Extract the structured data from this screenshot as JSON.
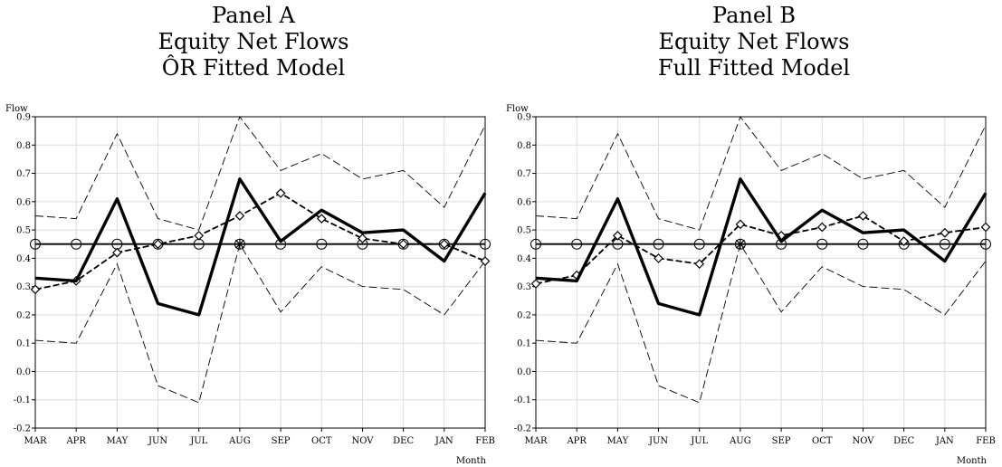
{
  "chart_data": [
    {
      "type": "line",
      "title_lines": [
        "Panel A",
        "Equity Net Flows",
        "ÔR Fitted Model"
      ],
      "xlabel": "Month",
      "ylabel": "Flow",
      "categories": [
        "MAR",
        "APR",
        "MAY",
        "JUN",
        "JUL",
        "AUG",
        "SEP",
        "OCT",
        "NOV",
        "DEC",
        "JAN",
        "FEB"
      ],
      "yticks": [
        "-0.2",
        "-0.1",
        "0.0",
        "0.1",
        "0.2",
        "0.3",
        "0.4",
        "0.5",
        "0.6",
        "0.7",
        "0.8",
        "0.9"
      ],
      "ylim": [
        -0.2,
        0.9
      ],
      "grid": true,
      "series": [
        {
          "style": "solid-thick",
          "values": [
            0.33,
            0.32,
            0.61,
            0.24,
            0.2,
            0.68,
            0.46,
            0.57,
            0.49,
            0.5,
            0.39,
            0.63
          ]
        },
        {
          "style": "dashed-diamond",
          "values": [
            0.29,
            0.32,
            0.42,
            0.45,
            0.48,
            0.55,
            0.63,
            0.54,
            0.47,
            0.45,
            0.45,
            0.39
          ]
        },
        {
          "style": "solid-circle",
          "values": [
            0.45,
            0.45,
            0.45,
            0.45,
            0.45,
            0.45,
            0.45,
            0.45,
            0.45,
            0.45,
            0.45,
            0.45
          ]
        },
        {
          "style": "dashed-thin-upper",
          "values": [
            0.55,
            0.54,
            0.84,
            0.54,
            0.5,
            0.9,
            0.71,
            0.77,
            0.68,
            0.71,
            0.58,
            0.87
          ]
        },
        {
          "style": "dashed-thin-lower",
          "values": [
            0.11,
            0.1,
            0.38,
            -0.05,
            -0.11,
            0.45,
            0.21,
            0.37,
            0.3,
            0.29,
            0.2,
            0.39
          ]
        }
      ]
    },
    {
      "type": "line",
      "title_lines": [
        "Panel B",
        "Equity Net Flows",
        "Full Fitted Model"
      ],
      "xlabel": "Month",
      "ylabel": "Flow",
      "categories": [
        "MAR",
        "APR",
        "MAY",
        "JUN",
        "JUL",
        "AUG",
        "SEP",
        "OCT",
        "NOV",
        "DEC",
        "JAN",
        "FEB"
      ],
      "yticks": [
        "-0.2",
        "-0.1",
        "0.0",
        "0.1",
        "0.2",
        "0.3",
        "0.4",
        "0.5",
        "0.6",
        "0.7",
        "0.8",
        "0.9"
      ],
      "ylim": [
        -0.2,
        0.9
      ],
      "grid": true,
      "series": [
        {
          "style": "solid-thick",
          "values": [
            0.33,
            0.32,
            0.61,
            0.24,
            0.2,
            0.68,
            0.46,
            0.57,
            0.49,
            0.5,
            0.39,
            0.63
          ]
        },
        {
          "style": "dashed-diamond",
          "values": [
            0.31,
            0.34,
            0.48,
            0.4,
            0.38,
            0.52,
            0.48,
            0.51,
            0.55,
            0.46,
            0.49,
            0.51
          ]
        },
        {
          "style": "solid-circle",
          "values": [
            0.45,
            0.45,
            0.45,
            0.45,
            0.45,
            0.45,
            0.45,
            0.45,
            0.45,
            0.45,
            0.45,
            0.45
          ]
        },
        {
          "style": "dashed-thin-upper",
          "values": [
            0.55,
            0.54,
            0.84,
            0.54,
            0.5,
            0.9,
            0.71,
            0.77,
            0.68,
            0.71,
            0.58,
            0.87
          ]
        },
        {
          "style": "dashed-thin-lower",
          "values": [
            0.11,
            0.1,
            0.38,
            -0.05,
            -0.11,
            0.45,
            0.21,
            0.37,
            0.3,
            0.29,
            0.2,
            0.39
          ]
        }
      ]
    }
  ]
}
